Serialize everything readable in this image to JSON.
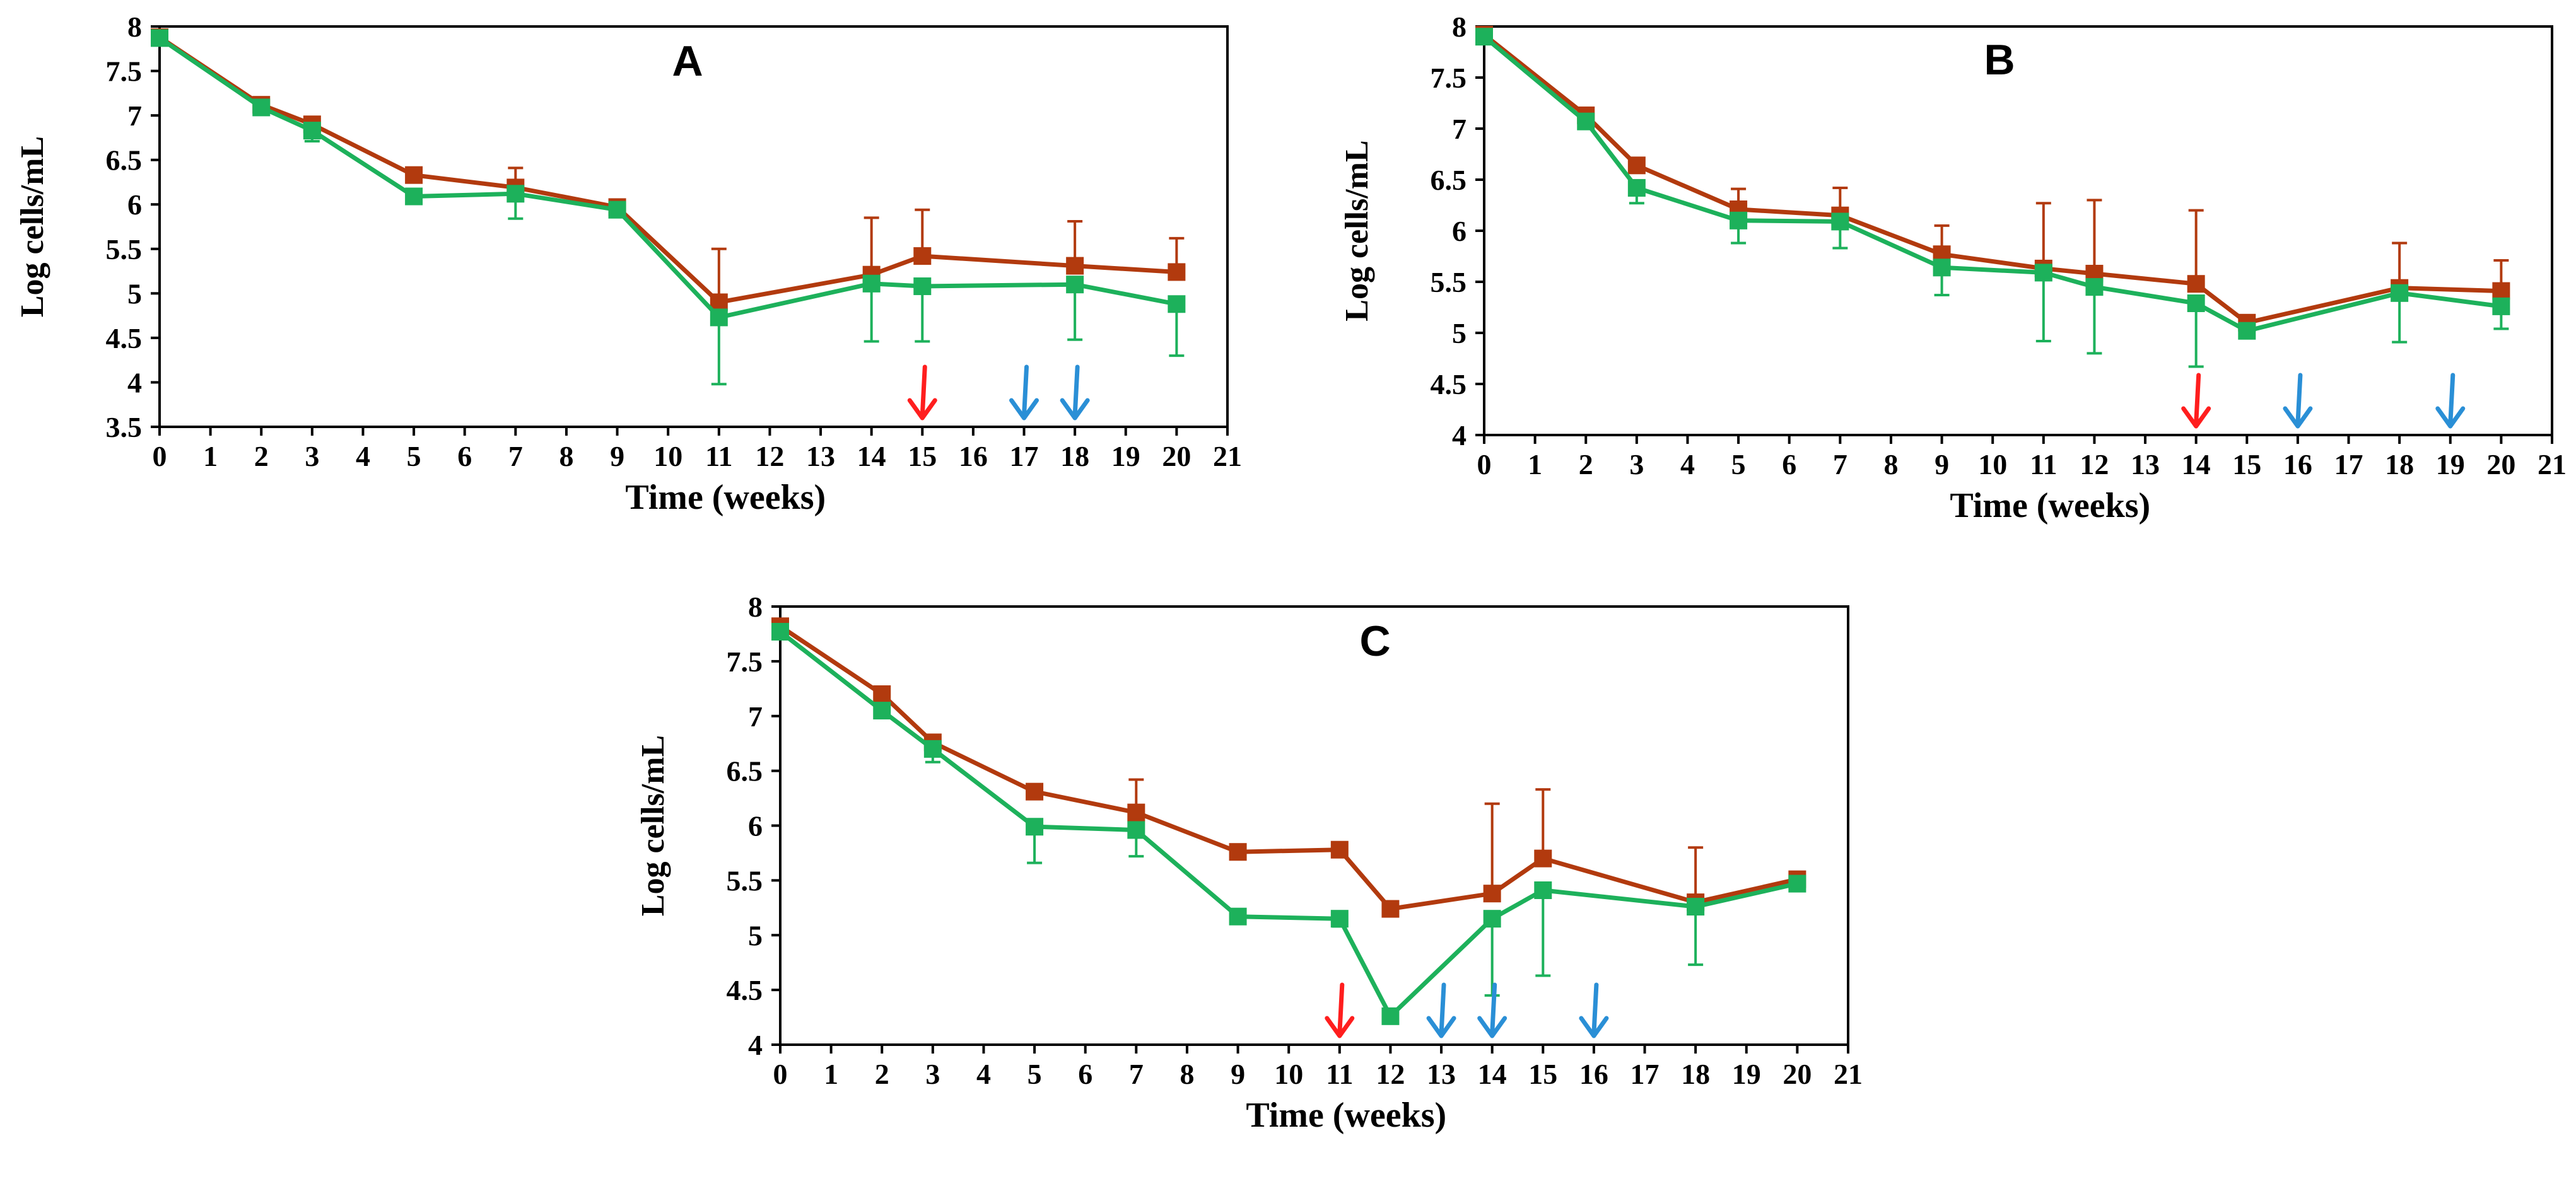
{
  "chart_data": [
    {
      "type": "line",
      "panel_label": "A",
      "xlabel": "Time (weeks)",
      "ylabel": "Log cells/mL",
      "xlim": [
        0,
        21
      ],
      "ylim": [
        3.5,
        8
      ],
      "xticks": [
        0,
        1,
        2,
        3,
        4,
        5,
        6,
        7,
        8,
        9,
        10,
        11,
        12,
        13,
        14,
        15,
        16,
        17,
        18,
        19,
        20,
        21
      ],
      "yticks": [
        3.5,
        4,
        4.5,
        5,
        5.5,
        6,
        6.5,
        7,
        7.5,
        8
      ],
      "grid": false,
      "legend": "none",
      "series": [
        {
          "color": "#B23A0E",
          "x": [
            0,
            2,
            3,
            5,
            7,
            9,
            11,
            14,
            15,
            18,
            20
          ],
          "y": [
            7.88,
            7.12,
            6.9,
            6.33,
            6.19,
            5.97,
            4.9,
            5.21,
            5.42,
            5.31,
            5.24
          ],
          "err_up": [
            0,
            0,
            0,
            0,
            0.22,
            0,
            0.6,
            0.64,
            0.52,
            0.5,
            0.38
          ],
          "err_down": [
            0,
            0,
            0,
            0,
            0,
            0,
            0,
            0,
            0,
            0,
            0
          ]
        },
        {
          "color": "#1DB15B",
          "x": [
            0,
            2,
            3,
            5,
            7,
            9,
            11,
            14,
            15,
            18,
            20
          ],
          "y": [
            7.87,
            7.09,
            6.83,
            6.09,
            6.12,
            5.94,
            4.73,
            5.11,
            5.08,
            5.1,
            4.88
          ],
          "err_up": [
            0,
            0,
            0,
            0,
            0,
            0,
            0,
            0,
            0,
            0,
            0
          ],
          "err_down": [
            0,
            0,
            0.12,
            0,
            0.28,
            0,
            0.75,
            0.65,
            0.62,
            0.62,
            0.58
          ]
        }
      ],
      "arrows": [
        {
          "x": 15,
          "color": "#FF1E1E"
        },
        {
          "x": 17,
          "color": "#2A8FD6"
        },
        {
          "x": 18,
          "color": "#2A8FD6"
        }
      ]
    },
    {
      "type": "line",
      "panel_label": "B",
      "xlabel": "Time (weeks)",
      "ylabel": "Log cells/mL",
      "xlim": [
        0,
        21
      ],
      "ylim": [
        4,
        8
      ],
      "xticks": [
        0,
        1,
        2,
        3,
        4,
        5,
        6,
        7,
        8,
        9,
        10,
        11,
        12,
        13,
        14,
        15,
        16,
        17,
        18,
        19,
        20,
        21
      ],
      "yticks": [
        4,
        4.5,
        5,
        5.5,
        6,
        6.5,
        7,
        7.5,
        8
      ],
      "grid": false,
      "legend": "none",
      "series": [
        {
          "color": "#B23A0E",
          "x": [
            0,
            2,
            3,
            5,
            7,
            9,
            11,
            12,
            14,
            15,
            18,
            20
          ],
          "y": [
            7.92,
            7.13,
            6.64,
            6.21,
            6.15,
            5.77,
            5.63,
            5.58,
            5.48,
            5.1,
            5.44,
            5.41
          ],
          "err_up": [
            0,
            0,
            0,
            0.2,
            0.27,
            0.28,
            0.64,
            0.72,
            0.72,
            0,
            0.44,
            0.3
          ],
          "err_down": [
            0,
            0,
            0,
            0,
            0,
            0,
            0,
            0,
            0,
            0,
            0,
            0
          ]
        },
        {
          "color": "#1DB15B",
          "x": [
            0,
            2,
            3,
            5,
            7,
            9,
            11,
            12,
            14,
            15,
            18,
            20
          ],
          "y": [
            7.9,
            7.07,
            6.42,
            6.1,
            6.09,
            5.64,
            5.59,
            5.45,
            5.29,
            5.02,
            5.39,
            5.26
          ],
          "err_up": [
            0,
            0,
            0,
            0,
            0,
            0,
            0,
            0,
            0,
            0,
            0,
            0
          ],
          "err_down": [
            0,
            0,
            0.15,
            0.22,
            0.26,
            0.27,
            0.67,
            0.65,
            0.62,
            0,
            0.48,
            0.22
          ]
        }
      ],
      "arrows": [
        {
          "x": 14,
          "color": "#FF1E1E"
        },
        {
          "x": 16,
          "color": "#2A8FD6"
        },
        {
          "x": 19,
          "color": "#2A8FD6"
        }
      ]
    },
    {
      "type": "line",
      "panel_label": "C",
      "xlabel": "Time (weeks)",
      "ylabel": "Log cells/mL",
      "xlim": [
        0,
        21
      ],
      "ylim": [
        4,
        8
      ],
      "xticks": [
        0,
        1,
        2,
        3,
        4,
        5,
        6,
        7,
        8,
        9,
        10,
        11,
        12,
        13,
        14,
        15,
        16,
        17,
        18,
        19,
        20,
        21
      ],
      "yticks": [
        4,
        4.5,
        5,
        5.5,
        6,
        6.5,
        7,
        7.5,
        8
      ],
      "grid": false,
      "legend": "none",
      "series": [
        {
          "color": "#B23A0E",
          "x": [
            0,
            2,
            3,
            5,
            7,
            9,
            11,
            12,
            14,
            15,
            18,
            20
          ],
          "y": [
            7.82,
            7.2,
            6.76,
            6.31,
            6.12,
            5.76,
            5.78,
            5.24,
            5.38,
            5.7,
            5.3,
            5.51
          ],
          "err_up": [
            0,
            0,
            0,
            0,
            0.3,
            0,
            0,
            0,
            0.82,
            0.63,
            0.5,
            0
          ],
          "err_down": [
            0,
            0,
            0,
            0,
            0,
            0,
            0,
            0,
            0,
            0,
            0,
            0
          ]
        },
        {
          "color": "#1DB15B",
          "x": [
            0,
            2,
            3,
            5,
            7,
            9,
            11,
            12,
            14,
            15,
            18,
            20
          ],
          "y": [
            7.77,
            7.05,
            6.7,
            5.99,
            5.96,
            5.17,
            5.15,
            4.26,
            5.15,
            5.41,
            5.26,
            5.47
          ],
          "err_up": [
            0,
            0,
            0,
            0,
            0,
            0,
            0,
            0,
            0,
            0,
            0,
            0
          ],
          "err_down": [
            0,
            0,
            0.12,
            0.33,
            0.24,
            0,
            0.07,
            0,
            0.7,
            0.78,
            0.53,
            0
          ]
        }
      ],
      "arrows": [
        {
          "x": 11,
          "color": "#FF1E1E"
        },
        {
          "x": 13,
          "color": "#2A8FD6"
        },
        {
          "x": 14,
          "color": "#2A8FD6"
        },
        {
          "x": 16,
          "color": "#2A8FD6"
        }
      ]
    }
  ]
}
